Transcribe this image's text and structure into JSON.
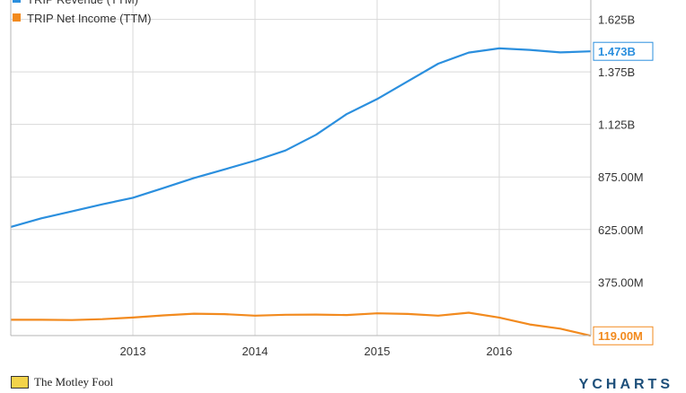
{
  "chart_data": {
    "type": "line",
    "x_ticks": [
      "2013",
      "2014",
      "2015",
      "2016"
    ],
    "y_ticks": [
      "375.00M",
      "625.00M",
      "875.00M",
      "1.125B",
      "1.375B",
      "1.625B"
    ],
    "y_tick_values": [
      375,
      625,
      875,
      1125,
      1375,
      1625
    ],
    "ylim": [
      120,
      1760
    ],
    "xlim": [
      2012.0,
      2016.75
    ],
    "grid": true,
    "legend_position": "top-left",
    "series": [
      {
        "name": "TRIP Revenue (TTM)",
        "color": "#2b8fde",
        "end_label": "1.473B",
        "x": [
          2012.0,
          2012.25,
          2012.5,
          2012.75,
          2013.0,
          2013.25,
          2013.5,
          2013.75,
          2014.0,
          2014.25,
          2014.5,
          2014.75,
          2015.0,
          2015.25,
          2015.5,
          2015.75,
          2016.0,
          2016.25,
          2016.5,
          2016.75
        ],
        "y": [
          637,
          678,
          711,
          745,
          776,
          822,
          870,
          911,
          953,
          1001,
          1076,
          1174,
          1246,
          1330,
          1414,
          1467,
          1487,
          1480,
          1468,
          1473
        ]
      },
      {
        "name": "TRIP Net Income (TTM)",
        "color": "#f28a1e",
        "end_label": "119.00M",
        "x": [
          2012.0,
          2012.25,
          2012.5,
          2012.75,
          2013.0,
          2013.25,
          2013.5,
          2013.75,
          2014.0,
          2014.25,
          2014.5,
          2014.75,
          2015.0,
          2015.25,
          2015.5,
          2015.75,
          2016.0,
          2016.25,
          2016.5,
          2016.75
        ],
        "y": [
          195,
          195,
          194,
          198,
          206,
          216,
          224,
          222,
          215,
          219,
          220,
          218,
          226,
          223,
          215,
          229,
          206,
          173,
          153,
          119
        ]
      }
    ]
  },
  "footer": {
    "source": "The Motley Fool",
    "brand": "YCHARTS"
  }
}
